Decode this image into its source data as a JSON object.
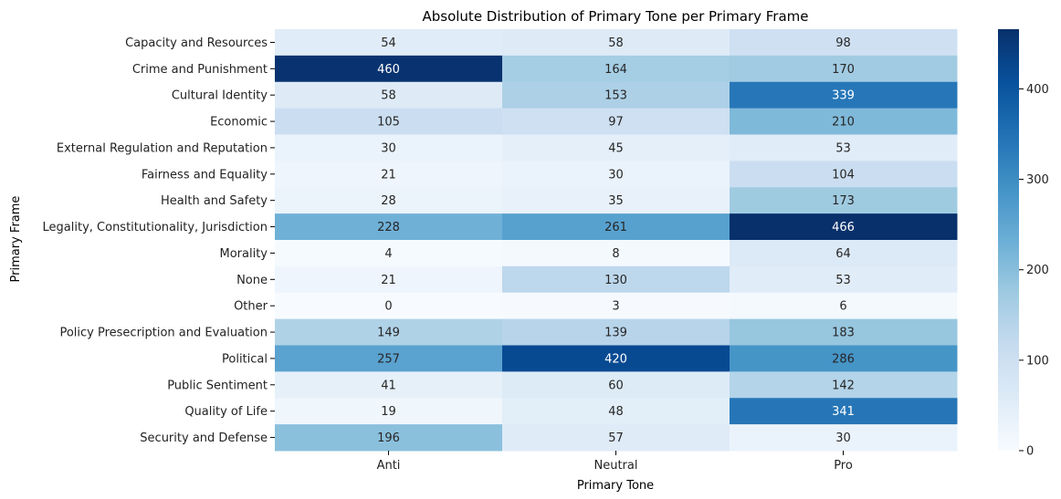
{
  "chart_data": {
    "type": "heatmap",
    "title": "Absolute Distribution of Primary Tone per Primary Frame",
    "xlabel": "Primary Tone",
    "ylabel": "Primary Frame",
    "x_categories": [
      "Anti",
      "Neutral",
      "Pro"
    ],
    "y_categories": [
      "Capacity and Resources",
      "Crime and Punishment",
      "Cultural Identity",
      "Economic",
      "External Regulation and Reputation",
      "Fairness and Equality",
      "Health and Safety",
      "Legality, Constitutionality, Jurisdiction",
      "Morality",
      "None",
      "Other",
      "Policy Presecription and Evaluation",
      "Political",
      "Public Sentiment",
      "Quality of Life",
      "Security and Defense"
    ],
    "values": [
      [
        54,
        58,
        98
      ],
      [
        460,
        164,
        170
      ],
      [
        58,
        153,
        339
      ],
      [
        105,
        97,
        210
      ],
      [
        30,
        45,
        53
      ],
      [
        21,
        30,
        104
      ],
      [
        28,
        35,
        173
      ],
      [
        228,
        261,
        466
      ],
      [
        4,
        8,
        64
      ],
      [
        21,
        130,
        53
      ],
      [
        0,
        3,
        6
      ],
      [
        149,
        139,
        183
      ],
      [
        257,
        420,
        286
      ],
      [
        41,
        60,
        142
      ],
      [
        19,
        48,
        341
      ],
      [
        196,
        57,
        30
      ]
    ],
    "colorbar": {
      "min": 0,
      "max": 466,
      "ticks": [
        0,
        100,
        200,
        300,
        400
      ]
    },
    "colormap": "Blues",
    "grid": false
  }
}
